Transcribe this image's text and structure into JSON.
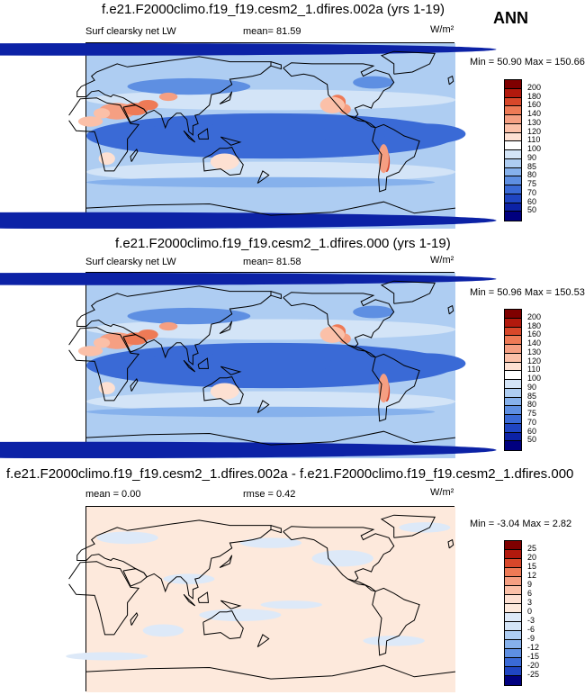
{
  "season": "ANN",
  "panels": [
    {
      "title": "f.e21.F2000climo.f19_f19.cesm2_1.dfires.002a (yrs 1-19)",
      "left_label": "Surf clearsky net LW",
      "mid_label": "mean=  81.59",
      "units": "W/m²",
      "minmax": "Min =  50.90 Max = 150.66",
      "ticks": [
        "200",
        "180",
        "160",
        "140",
        "130",
        "120",
        "110",
        "100",
        "90",
        "85",
        "80",
        "75",
        "70",
        "60",
        "50"
      ]
    },
    {
      "title": "f.e21.F2000climo.f19_f19.cesm2_1.dfires.000 (yrs 1-19)",
      "left_label": "Surf clearsky net LW",
      "mid_label": "mean=  81.58",
      "units": "W/m²",
      "minmax": "Min =  50.96 Max = 150.53",
      "ticks": [
        "200",
        "180",
        "160",
        "140",
        "130",
        "120",
        "110",
        "100",
        "90",
        "85",
        "80",
        "75",
        "70",
        "60",
        "50"
      ]
    },
    {
      "title": "f.e21.F2000climo.f19_f19.cesm2_1.dfires.002a - f.e21.F2000climo.f19_f19.cesm2_1.dfires.000",
      "left_label": "mean =   0.00",
      "mid_label": "rmse =   0.42",
      "units": "W/m²",
      "minmax": "Min =  -3.04 Max =   2.82",
      "ticks": [
        "25",
        "20",
        "15",
        "12",
        "9",
        "6",
        "3",
        "0",
        "-3",
        "-6",
        "-9",
        "-12",
        "-15",
        "-20",
        "-25"
      ]
    }
  ],
  "colors": {
    "abs_scale": [
      "#7f0000",
      "#b2190d",
      "#d8472a",
      "#ee7a56",
      "#f59f82",
      "#fbc0a8",
      "#fde0d2",
      "#ffffff",
      "#d3e4f7",
      "#aecdf2",
      "#86b1ec",
      "#5e8fe2",
      "#3a6ad6",
      "#1f45c2",
      "#0c22a6",
      "#00007f"
    ],
    "diff_scale": [
      "#7f0000",
      "#b2190d",
      "#d8472a",
      "#ee7a56",
      "#f59f82",
      "#fbc0a8",
      "#fde0d2",
      "#fde9dc",
      "#dde9f8",
      "#d3e4f7",
      "#aecdf2",
      "#86b1ec",
      "#5e8fe2",
      "#3a6ad6",
      "#1f45c2",
      "#00007f"
    ]
  }
}
